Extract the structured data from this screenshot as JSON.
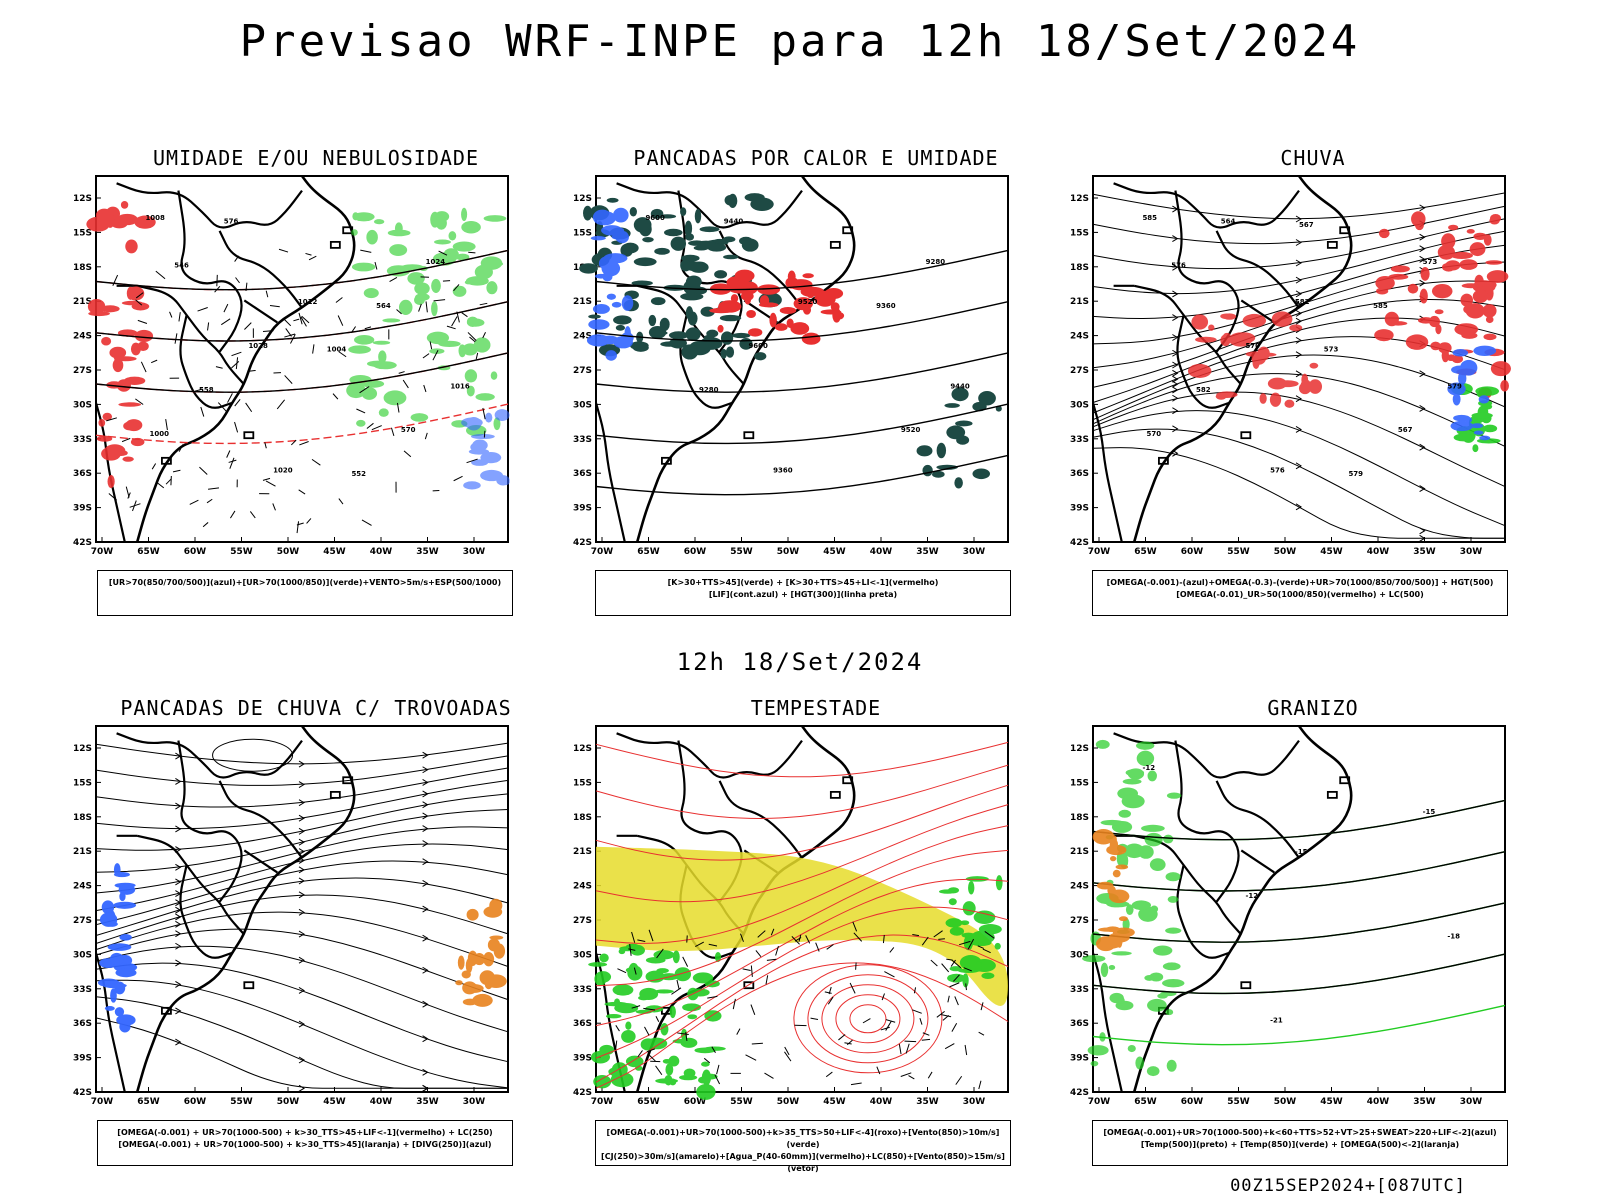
{
  "header": {
    "title": "Previsao WRF-INPE  para 12h 18/Set/2024"
  },
  "middle": {
    "subtitle": "12h 18/Set/2024"
  },
  "footer": {
    "run_info": "00Z15SEP2024+[087UTC]"
  },
  "axes": {
    "lat_labels": [
      "12S",
      "15S",
      "18S",
      "21S",
      "24S",
      "27S",
      "30S",
      "33S",
      "36S",
      "39S",
      "42S"
    ],
    "lon_labels": [
      "70W",
      "65W",
      "60W",
      "55W",
      "50W",
      "45W",
      "40W",
      "35W",
      "30W"
    ]
  },
  "colors": {
    "red": "#e83030",
    "green": "#22cc22",
    "blue": "#3366ff",
    "yellow": "#e6dc2a",
    "dark": "#1e4a44",
    "orange": "#e8821e"
  },
  "panels": [
    {
      "title": "UMIDADE E/OU NEBULOSIDADE",
      "legend": [
        "[UR>70(850/700/500)](azul)+[UR>70(1000/850)](verde)+VENTO>5m/s+ESP(500/1000)"
      ],
      "contour_labels": [
        "1008",
        "1012",
        "1016",
        "1020",
        "1024",
        "1028",
        "570",
        "576",
        "564",
        "558",
        "552",
        "546",
        "1004",
        "1000"
      ]
    },
    {
      "title": "PANCADAS POR CALOR E UMIDADE",
      "legend": [
        "[K>30+TTS>45](verde) + [K>30+TTS>45+LI<-1](vermelho)",
        "[LIF](cont.azul) + [HGT(300)](linha preta)"
      ],
      "contour_labels": [
        "9600",
        "9520",
        "9440",
        "9360",
        "9280",
        "9600",
        "9520",
        "9440",
        "9360",
        "9280"
      ]
    },
    {
      "title": "CHUVA",
      "legend": [
        "[OMEGA(-0.001)-(azul)+OMEGA(-0.3)-(verde)+UR>70(1000/850/700/500)] + HGT(500)",
        "[OMEGA(-0.01)_UR>50(1000/850)(vermelho) + LC(500)"
      ],
      "contour_labels": [
        "585",
        "582",
        "579",
        "576",
        "573",
        "570",
        "567",
        "564",
        "585",
        "582",
        "579",
        "576",
        "573",
        "570",
        "567"
      ]
    },
    {
      "title": "PANCADAS DE CHUVA C/ TROVOADAS",
      "legend": [
        "[OMEGA(-0.001) + UR>70(1000-500) + k>30_TTS>45+LIF<-1](vermelho) + LC(250)",
        "[OMEGA(-0.001) + UR>70(1000-500) + k>30_TTS>45](laranja) + [DIVG(250)](azul)"
      ],
      "contour_labels": []
    },
    {
      "title": "TEMPESTADE",
      "legend": [
        "[OMEGA(-0.001)+UR>70(1000-500)+k>35_TTS>50+LIF<-4](roxo)+[Vento(850)>10m/s](verde)",
        "[CJ(250)>30m/s](amarelo)+[Agua_P(40-60mm)](vermelho)+LC(850)+[Vento(850)>15m/s](vetor)"
      ],
      "contour_labels": []
    },
    {
      "title": "GRANIZO",
      "legend": [
        "[OMEGA(-0.001)+UR>70(1000-500)+k<60+TTS>52+VT>25+SWEAT>220+LIF<-2](azul)",
        "[Temp(500)](preto) + [Temp(850)](verde) + [OMEGA(500)<-2](laranja)"
      ],
      "contour_labels": [
        "-12",
        "-15",
        "-18",
        "-21",
        "-15",
        "-12"
      ]
    }
  ]
}
